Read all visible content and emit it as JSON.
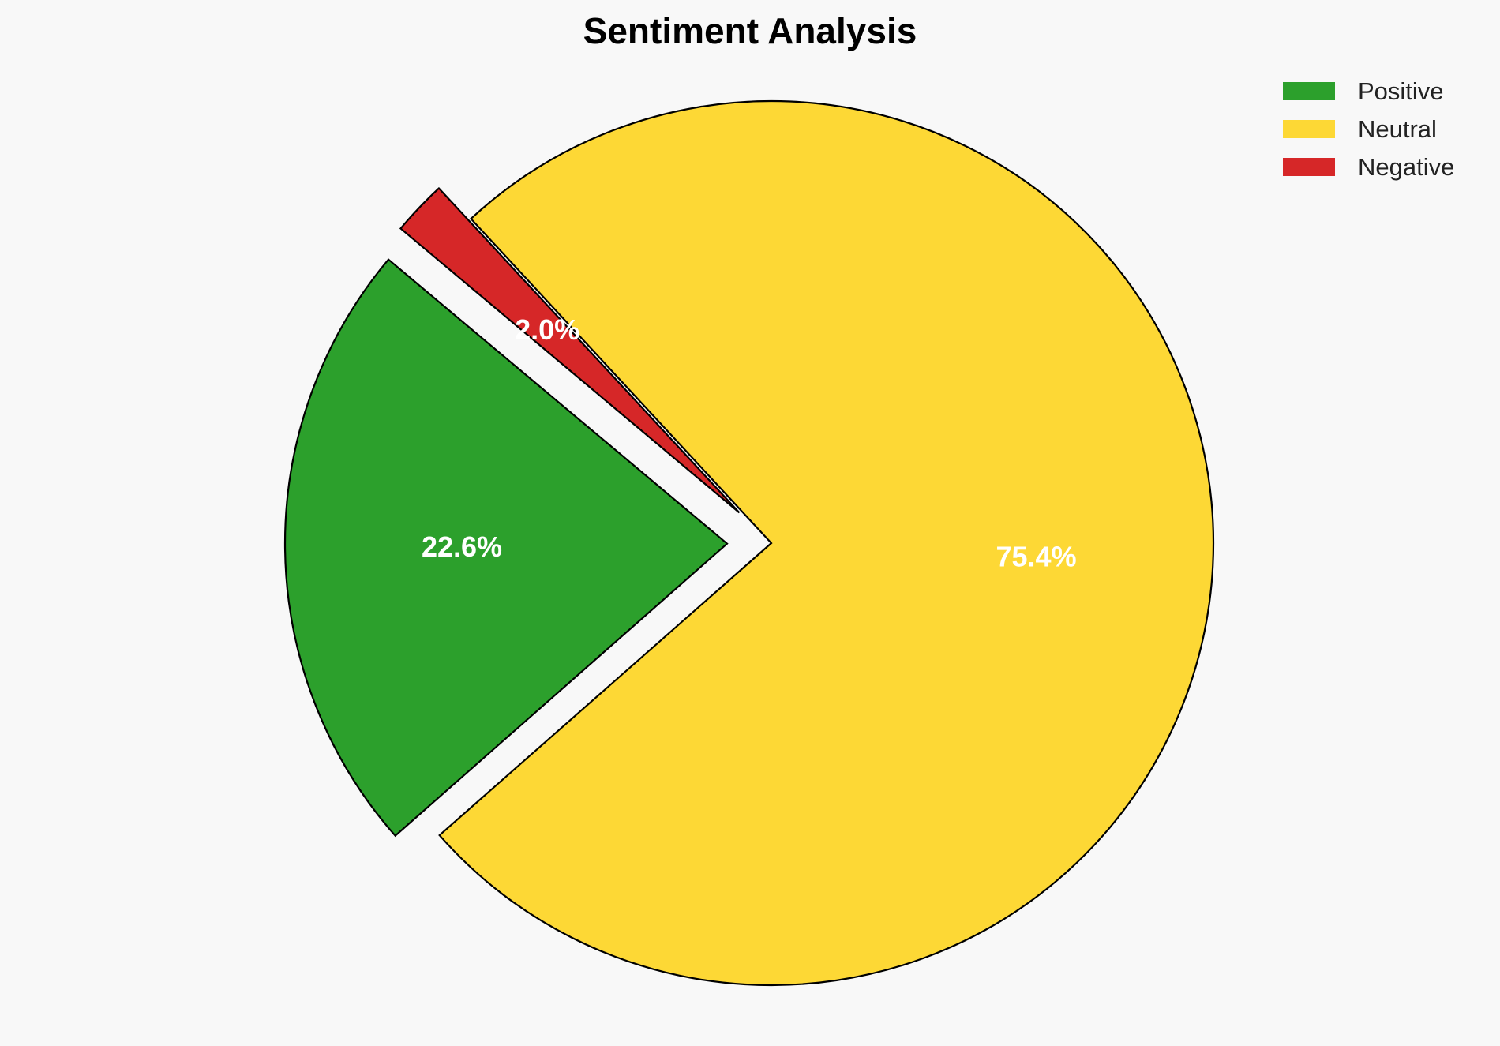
{
  "chart_data": {
    "type": "pie",
    "title": "Sentiment Analysis",
    "categories": [
      "Positive",
      "Neutral",
      "Negative"
    ],
    "values": [
      22.6,
      75.4,
      2.0
    ],
    "value_labels": [
      "22.6%",
      "75.4%",
      "2.0%"
    ],
    "colors": [
      "#2ca02c",
      "#fdd835",
      "#d62728"
    ],
    "exploded": true,
    "legend_position": "top-right"
  }
}
